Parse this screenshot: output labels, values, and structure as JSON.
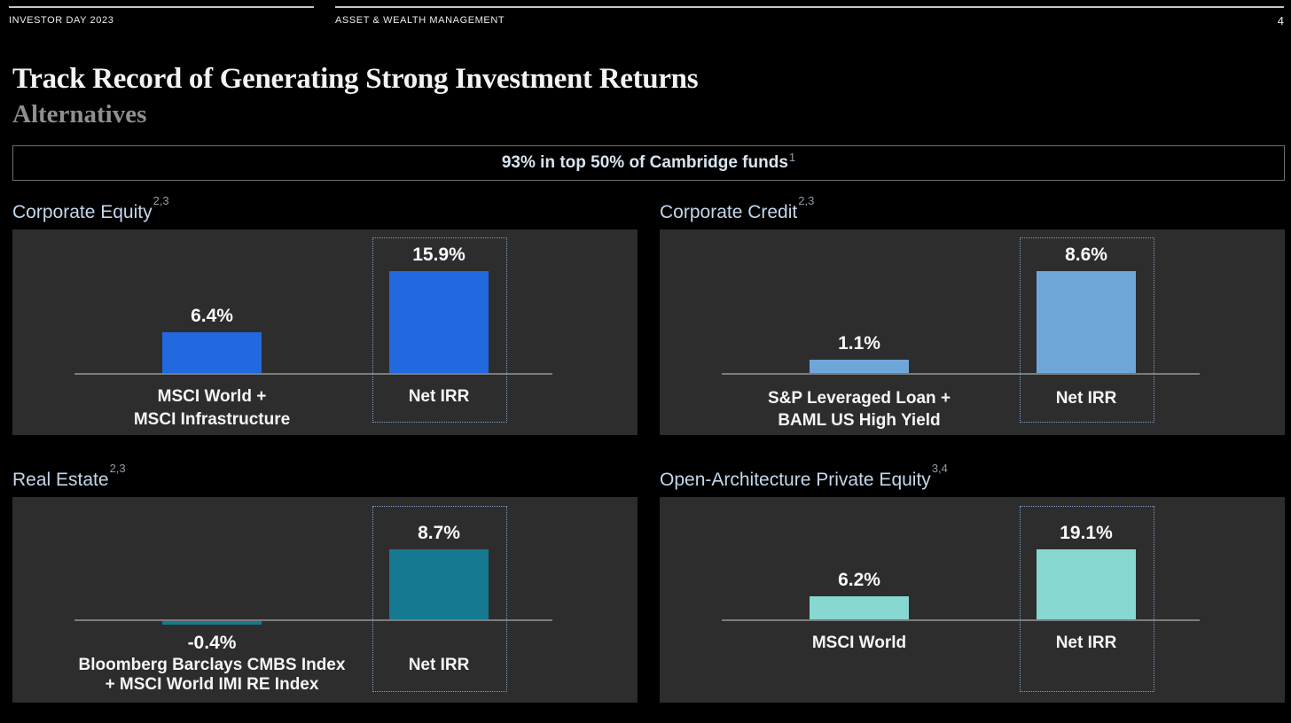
{
  "page": {
    "header": {
      "left": "INVESTOR DAY 2023",
      "center": "ASSET & WEALTH MANAGEMENT",
      "page_number": "4"
    },
    "title": "Track Record of Generating Strong Investment Returns",
    "subtitle": "Alternatives",
    "banner": {
      "text": "93% in top 50% of Cambridge funds",
      "footnote_sup": "1"
    }
  },
  "colors": {
    "background": "#000000",
    "panel_background": "#2e2d2d",
    "corporate_equity_bar": "#2268de",
    "corporate_credit_bar": "#6fa6d8",
    "real_estate_bar": "#157a91",
    "private_equity_bar": "#86d8d0",
    "section_title_text": "#c3d7ea",
    "banner_text": "#d8e4f0",
    "baseline": "#7c7c7c",
    "dotted_highlight_border": "#7e9dc2"
  },
  "chart_data": [
    {
      "type": "bar",
      "title": "Corporate Equity",
      "footnote_sup": "2,3",
      "bar_color": "#2268de",
      "categories": [
        [
          "MSCI World +",
          "MSCI Infrastructure"
        ],
        [
          "Net IRR"
        ]
      ],
      "values": [
        6.4,
        15.9
      ],
      "value_labels": [
        "6.4%",
        "15.9%"
      ],
      "highlighted_category": "Net IRR",
      "legend": "none",
      "grid": "off"
    },
    {
      "type": "bar",
      "title": "Corporate Credit",
      "footnote_sup": "2,3",
      "bar_color": "#6fa6d8",
      "categories": [
        [
          "S&P Leveraged Loan +",
          "BAML US High Yield"
        ],
        [
          "Net IRR"
        ]
      ],
      "values": [
        1.1,
        8.6
      ],
      "value_labels": [
        "1.1%",
        "8.6%"
      ],
      "highlighted_category": "Net IRR",
      "legend": "none",
      "grid": "off"
    },
    {
      "type": "bar",
      "title": "Real Estate",
      "footnote_sup": "2,3",
      "bar_color": "#157a91",
      "categories": [
        [
          "Bloomberg Barclays CMBS Index",
          "+ MSCI World IMI RE Index"
        ],
        [
          "Net IRR"
        ]
      ],
      "values": [
        -0.4,
        8.7
      ],
      "value_labels": [
        "-0.4%",
        "8.7%"
      ],
      "highlighted_category": "Net IRR",
      "legend": "none",
      "grid": "off"
    },
    {
      "type": "bar",
      "title": "Open-Architecture Private Equity",
      "footnote_sup": "3,4",
      "bar_color": "#86d8d0",
      "categories": [
        [
          "MSCI World"
        ],
        [
          "Net IRR"
        ]
      ],
      "values": [
        6.2,
        19.1
      ],
      "value_labels": [
        "6.2%",
        "19.1%"
      ],
      "highlighted_category": "Net IRR",
      "legend": "none",
      "grid": "off"
    }
  ]
}
